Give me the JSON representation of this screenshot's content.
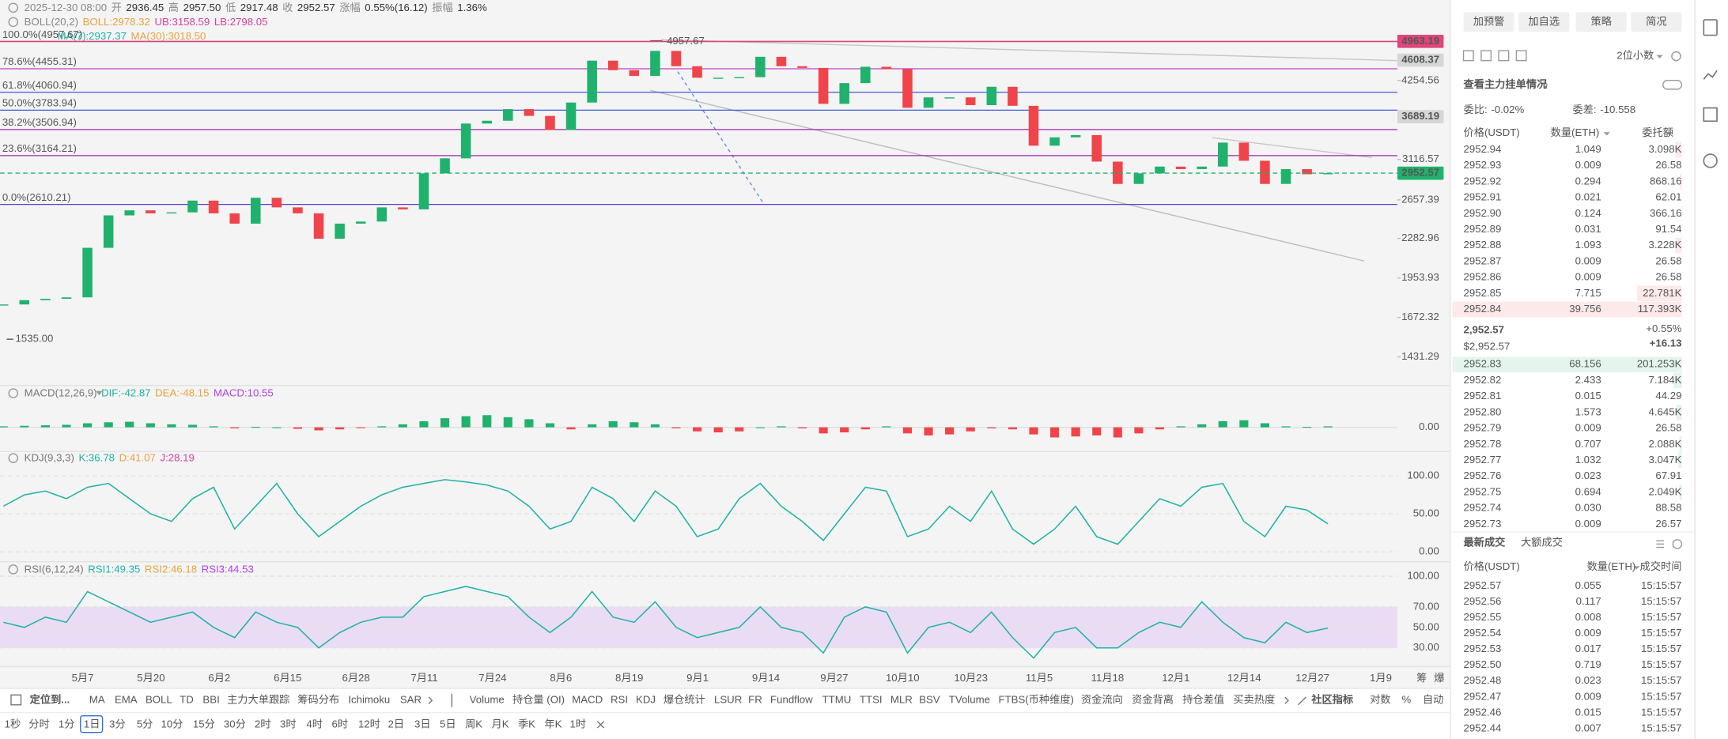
{
  "ohlc": {
    "time": "2025-12-30 08:00",
    "open_label": "开",
    "open": "2936.45",
    "high_label": "高",
    "high": "2957.50",
    "low_label": "低",
    "low": "2917.48",
    "close_label": "收",
    "close": "2952.57",
    "change_label": "涨幅",
    "change": "0.55%(16.12)",
    "amplitude_label": "振幅",
    "amplitude": "1.36%"
  },
  "boll": {
    "name": "BOLL(20,2)",
    "mid": "BOLL:2978.32",
    "upper": "UB:3158.59",
    "lower": "LB:2798.05"
  },
  "ma": {
    "ma7": "MA(7):2937.37",
    "ma30": "MA(30):3018.50"
  },
  "price_chart": {
    "scale": "log",
    "ylim": [
      1279,
      5173
    ],
    "yticks": [
      1431.29,
      1672.32,
      1953.93,
      2282.96,
      2657.39,
      3116.57,
      4254.56
    ],
    "up_color": "#20b26c",
    "down_color": "#ef454a",
    "closes": [
      1760,
      1790,
      1800,
      1810,
      2200,
      2500,
      2550,
      2520,
      2530,
      2650,
      2520,
      2420,
      2680,
      2580,
      2520,
      2280,
      2420,
      2440,
      2580,
      2560,
      2950,
      3130,
      3590,
      3630,
      3800,
      3700,
      3500,
      3900,
      4600,
      4430,
      4330,
      4780,
      4500,
      4300,
      4300,
      4310,
      4670,
      4500,
      4470,
      3880,
      4210,
      4490,
      4450,
      3820,
      3980,
      3980,
      3860,
      4150,
      3850,
      3290,
      3400,
      3430,
      3090,
      2830,
      2950,
      3030,
      3000,
      3030,
      3330,
      3100,
      2830,
      3000,
      2940,
      2952.57
    ],
    "x_labels": [
      "5月7",
      "5月20",
      "6月2",
      "6月15",
      "6月28",
      "7月11",
      "7月24",
      "8月6",
      "8月19",
      "9月1",
      "9月14",
      "9月27",
      "10月10",
      "10月23",
      "11月5",
      "11月18",
      "12月1",
      "12月14",
      "12月27",
      "1月9"
    ],
    "fib_levels": [
      {
        "label": "100.0%(4957.67)",
        "value": 4957.67,
        "color": "#9c27b0"
      },
      {
        "label": "78.6%(4455.31)",
        "value": 4455.31,
        "color": "#c040c0"
      },
      {
        "label": "61.8%(4060.94)",
        "value": 4060.94,
        "color": "#3b5bdb"
      },
      {
        "label": "50.0%(3783.94)",
        "value": 3783.94,
        "color": "#3b5bdb"
      },
      {
        "label": "38.2%(3506.94)",
        "value": 3506.94,
        "color": "#9c27b0"
      },
      {
        "label": "23.6%(3164.21)",
        "value": 3164.21,
        "color": "#9c27b0"
      },
      {
        "label": "0.0%(2610.21)",
        "value": 2610.21,
        "color": "#5b3fd1"
      }
    ],
    "price_tags": [
      {
        "value": 4963.19,
        "color": "#e0457b",
        "text_color": "#ffffff",
        "line": "solid"
      },
      {
        "value": 4608.37,
        "color": "#d6d6d6",
        "text_color": "#222222",
        "line": "none"
      },
      {
        "value": 3689.19,
        "color": "#d6d6d6",
        "text_color": "#222222",
        "line": "none"
      },
      {
        "value": 2952.57,
        "color": "#20b26c",
        "text_color": "#ffffff",
        "line": "dashed"
      }
    ],
    "high_note": {
      "value": 4957.67,
      "label": "4957.67"
    },
    "low_note": {
      "value": 1535,
      "label": "1535.00"
    },
    "corner_icons": [
      "筹",
      "爆"
    ]
  },
  "macd": {
    "title": "MACD(12,26,9)",
    "dif": "DIF:-42.87",
    "dea": "DEA:-48.15",
    "macd": "MACD:10.55",
    "ylim": [
      -250,
      250
    ],
    "yticks": [
      {
        "value": 0,
        "label": "0.00"
      }
    ],
    "histogram": [
      10,
      15,
      20,
      25,
      40,
      50,
      55,
      40,
      30,
      25,
      10,
      -10,
      5,
      0,
      -15,
      -30,
      -20,
      -5,
      10,
      30,
      60,
      90,
      110,
      120,
      100,
      80,
      40,
      -20,
      30,
      60,
      50,
      30,
      -10,
      -40,
      -50,
      -40,
      0,
      10,
      -10,
      -60,
      -50,
      -20,
      10,
      -60,
      -80,
      -70,
      -40,
      -10,
      -20,
      -70,
      -100,
      -90,
      -80,
      -100,
      -60,
      -20,
      10,
      30,
      60,
      70,
      40,
      10,
      5,
      10
    ]
  },
  "kdj": {
    "title": "KDJ(9,3,3)",
    "k": "K:36.78",
    "d": "D:41.07",
    "j": "J:28.19",
    "ylim": [
      -13,
      132
    ],
    "yticks": [
      {
        "value": 100,
        "label": "100.00"
      },
      {
        "value": 50,
        "label": "50.00"
      },
      {
        "value": 0,
        "label": "0.00"
      }
    ],
    "k_values": [
      60,
      75,
      80,
      70,
      85,
      90,
      70,
      50,
      40,
      70,
      85,
      30,
      60,
      90,
      50,
      20,
      40,
      60,
      75,
      85,
      90,
      95,
      92,
      88,
      80,
      60,
      30,
      40,
      85,
      70,
      40,
      80,
      60,
      20,
      30,
      70,
      90,
      60,
      40,
      15,
      50,
      85,
      80,
      20,
      30,
      60,
      40,
      80,
      30,
      10,
      30,
      60,
      20,
      10,
      40,
      70,
      60,
      85,
      90,
      40,
      20,
      60,
      55,
      36.78
    ]
  },
  "rsi": {
    "title": "RSI(6,12,24)",
    "rsi1": "RSI1:49.35",
    "rsi2": "RSI2:46.18",
    "rsi3": "RSI3:44.53",
    "ylim": [
      12,
      112
    ],
    "band": [
      30,
      70
    ],
    "yticks": [
      {
        "value": 100,
        "label": "100.00"
      },
      {
        "value": 70,
        "label": "70.00"
      },
      {
        "value": 50,
        "label": "50.00"
      },
      {
        "value": 30,
        "label": "30.00"
      }
    ],
    "rsi1_values": [
      55,
      50,
      60,
      55,
      85,
      75,
      65,
      55,
      60,
      65,
      50,
      40,
      65,
      55,
      50,
      30,
      45,
      55,
      60,
      60,
      80,
      85,
      90,
      85,
      80,
      60,
      45,
      60,
      85,
      60,
      55,
      75,
      50,
      40,
      45,
      50,
      70,
      50,
      45,
      25,
      60,
      70,
      65,
      25,
      50,
      55,
      45,
      65,
      40,
      20,
      45,
      50,
      30,
      30,
      45,
      55,
      50,
      75,
      55,
      40,
      35,
      55,
      45,
      49.35
    ]
  },
  "toolbar": [
    {
      "label": "定位到...",
      "active": false
    },
    {
      "label": "MA",
      "active": true
    },
    {
      "label": "EMA",
      "active": true
    },
    {
      "label": "BOLL",
      "active": true
    },
    {
      "label": "TD",
      "active": false
    },
    {
      "label": "BBI",
      "active": false
    },
    {
      "label": "主力大单跟踪",
      "active": false
    },
    {
      "label": "筹码分布",
      "active": false
    },
    {
      "label": "Ichimoku",
      "active": false
    },
    {
      "label": "SAR",
      "active": false
    },
    {
      "label": "Volume",
      "active": false
    },
    {
      "label": "持仓量 (OI)",
      "active": false
    },
    {
      "label": "MACD",
      "active": true
    },
    {
      "label": "RSI",
      "active": true
    },
    {
      "label": "KDJ",
      "active": true
    },
    {
      "label": "爆仓统计",
      "active": false
    },
    {
      "label": "LSUR",
      "active": false
    },
    {
      "label": "FR",
      "active": false
    },
    {
      "label": "Fundflow",
      "active": false
    },
    {
      "label": "TTMU",
      "active": false
    },
    {
      "label": "TTSI",
      "active": false
    },
    {
      "label": "MLR",
      "active": false
    },
    {
      "label": "BSV",
      "active": false
    },
    {
      "label": "TVolume",
      "active": false
    },
    {
      "label": "FTBS(币种维度)",
      "active": false
    },
    {
      "label": "资金流向",
      "active": false
    },
    {
      "label": "资金背离",
      "active": false
    },
    {
      "label": "持仓差值",
      "active": false
    },
    {
      "label": "买卖热度",
      "active": false
    },
    {
      "label": "社区指标",
      "active": false
    },
    {
      "label": "对数",
      "active": true
    },
    {
      "label": "%",
      "active": false
    },
    {
      "label": "自动",
      "active": true
    }
  ],
  "timeframes": [
    {
      "label": "1秒",
      "active": false
    },
    {
      "label": "分时",
      "active": false
    },
    {
      "label": "1分",
      "active": false
    },
    {
      "label": "1日",
      "active": true
    },
    {
      "label": "3分",
      "active": false
    },
    {
      "label": "5分",
      "active": false
    },
    {
      "label": "10分",
      "active": false
    },
    {
      "label": "15分",
      "active": false
    },
    {
      "label": "30分",
      "active": false
    },
    {
      "label": "2时",
      "active": false
    },
    {
      "label": "3时",
      "active": false
    },
    {
      "label": "4时",
      "active": false
    },
    {
      "label": "6时",
      "active": false
    },
    {
      "label": "12时",
      "active": false
    },
    {
      "label": "2日",
      "active": false
    },
    {
      "label": "3日",
      "active": false
    },
    {
      "label": "5日",
      "active": false
    },
    {
      "label": "周K",
      "active": false
    },
    {
      "label": "月K",
      "active": false
    },
    {
      "label": "季K",
      "active": false
    },
    {
      "label": "年K",
      "active": false
    },
    {
      "label": "1时",
      "active": false
    }
  ],
  "side_panel": {
    "buttons": [
      "加预警",
      "加自选",
      "策略",
      "简况"
    ],
    "precision": "2位小数",
    "depth_toggle": "查看主力挂单情况",
    "ratio_label": "委比:",
    "ratio": "-0.02%",
    "diff_label": "委差:",
    "diff": "-10.558",
    "book_headers": [
      "价格(USDT)",
      "数量(ETH)",
      "委托额"
    ],
    "asks": [
      [
        "2952.94",
        "1.049",
        "3.098K"
      ],
      [
        "2952.93",
        "0.009",
        "26.58"
      ],
      [
        "2952.92",
        "0.294",
        "868.16"
      ],
      [
        "2952.91",
        "0.021",
        "62.01"
      ],
      [
        "2952.90",
        "0.124",
        "366.16"
      ],
      [
        "2952.89",
        "0.031",
        "91.54"
      ],
      [
        "2952.88",
        "1.093",
        "3.228K"
      ],
      [
        "2952.87",
        "0.009",
        "26.58"
      ],
      [
        "2952.86",
        "0.009",
        "26.58"
      ],
      [
        "2952.85",
        "7.715",
        "22.781K"
      ],
      [
        "2952.84",
        "39.756",
        "117.393K"
      ]
    ],
    "last_price": "2,952.57",
    "last_price_usd": "$2,952.57",
    "change_pct": "+0.55%",
    "change_abs": "+16.13",
    "bids": [
      [
        "2952.83",
        "68.156",
        "201.253K"
      ],
      [
        "2952.82",
        "2.433",
        "7.184K"
      ],
      [
        "2952.81",
        "0.015",
        "44.29"
      ],
      [
        "2952.80",
        "1.573",
        "4.645K"
      ],
      [
        "2952.79",
        "0.009",
        "26.58"
      ],
      [
        "2952.78",
        "0.707",
        "2.088K"
      ],
      [
        "2952.77",
        "1.032",
        "3.047K"
      ],
      [
        "2952.76",
        "0.023",
        "67.91"
      ],
      [
        "2952.75",
        "0.694",
        "2.049K"
      ],
      [
        "2952.74",
        "0.030",
        "88.58"
      ],
      [
        "2952.73",
        "0.009",
        "26.57"
      ]
    ],
    "trade_tabs": [
      "最新成交",
      "大额成交"
    ],
    "trade_headers": [
      "价格(USDT)",
      "数量(ETH)",
      "成交时间"
    ],
    "trades": [
      [
        "2952.57",
        "0.055",
        "15:15:57"
      ],
      [
        "2952.56",
        "0.117",
        "15:15:57"
      ],
      [
        "2952.55",
        "0.008",
        "15:15:57"
      ],
      [
        "2952.54",
        "0.009",
        "15:15:57"
      ],
      [
        "2952.53",
        "0.017",
        "15:15:57"
      ],
      [
        "2952.50",
        "0.719",
        "15:15:57"
      ],
      [
        "2952.48",
        "0.023",
        "15:15:57"
      ],
      [
        "2952.47",
        "0.009",
        "15:15:57"
      ],
      [
        "2952.46",
        "0.015",
        "15:15:57"
      ],
      [
        "2952.44",
        "0.007",
        "15:15:57"
      ]
    ]
  }
}
